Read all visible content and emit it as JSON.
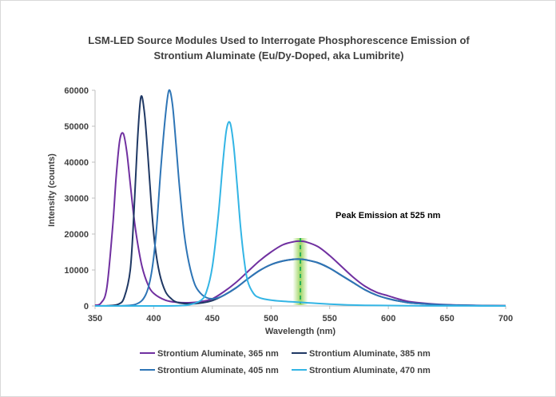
{
  "chart_data": {
    "type": "line",
    "title_line1": "LSM-LED Source Modules Used to Interrogate Phosphorescence Emission of",
    "title_line2": "Strontium Aluminate (Eu/Dy-Doped, aka Lumibrite)",
    "xlabel": "Wavelength (nm)",
    "ylabel": "Intensity (counts)",
    "xlim": [
      350,
      700
    ],
    "ylim": [
      0,
      60000
    ],
    "x_ticks": [
      350,
      400,
      450,
      500,
      550,
      600,
      650,
      700
    ],
    "y_ticks": [
      0,
      10000,
      20000,
      30000,
      40000,
      50000,
      60000
    ],
    "grid": false,
    "legend_position": "bottom",
    "annotation": {
      "text": "Peak Emission at 525 nm",
      "x": 525,
      "highlight_color": "#92d050"
    },
    "series": [
      {
        "name": "Strontium Aluminate, 365 nm",
        "color": "#7030a0",
        "x": [
          350,
          355,
          360,
          365,
          368,
          371,
          374,
          377,
          380,
          383,
          386,
          390,
          395,
          400,
          410,
          420,
          430,
          440,
          450,
          460,
          470,
          480,
          490,
          500,
          510,
          520,
          525,
          530,
          540,
          550,
          560,
          570,
          580,
          590,
          600,
          610,
          620,
          640,
          660,
          680,
          700
        ],
        "y": [
          200,
          800,
          5000,
          22000,
          36000,
          46000,
          48000,
          43000,
          34000,
          25000,
          18000,
          11000,
          6000,
          3500,
          1600,
          1000,
          900,
          1200,
          2000,
          4000,
          6500,
          9500,
          12500,
          15000,
          17000,
          17900,
          18000,
          17800,
          16500,
          14000,
          11000,
          8000,
          5500,
          3800,
          2800,
          1800,
          1100,
          500,
          250,
          100,
          50
        ]
      },
      {
        "name": "Strontium Aluminate, 385 nm",
        "color": "#1f3864",
        "x": [
          350,
          360,
          370,
          375,
          380,
          383,
          386,
          389,
          392,
          395,
          398,
          401,
          405,
          410,
          415,
          420,
          430,
          440,
          450,
          460,
          470,
          480,
          490,
          500,
          510,
          520,
          525,
          530,
          540,
          550,
          560,
          570,
          580,
          590,
          600,
          610,
          620,
          640,
          660,
          680,
          700
        ],
        "y": [
          0,
          50,
          500,
          2500,
          10000,
          25000,
          45000,
          58000,
          54000,
          42000,
          28000,
          17000,
          9000,
          4000,
          2000,
          1000,
          600,
          800,
          1500,
          3000,
          5000,
          7500,
          9800,
          11500,
          12500,
          13000,
          13000,
          12800,
          12000,
          10500,
          8500,
          6500,
          4500,
          3000,
          2000,
          1300,
          800,
          400,
          200,
          80,
          30
        ]
      },
      {
        "name": "Strontium Aluminate, 405 nm",
        "color": "#2e75b6",
        "x": [
          350,
          370,
          385,
          393,
          398,
          402,
          406,
          410,
          413,
          416,
          419,
          422,
          426,
          430,
          435,
          440,
          445,
          450,
          455,
          460,
          470,
          480,
          490,
          500,
          510,
          520,
          525,
          530,
          540,
          550,
          560,
          570,
          580,
          590,
          600,
          610,
          620,
          640,
          660,
          680,
          700
        ],
        "y": [
          0,
          30,
          500,
          3000,
          9000,
          20000,
          38000,
          53000,
          60000,
          56000,
          45000,
          33000,
          20000,
          12000,
          6000,
          3500,
          2300,
          2000,
          2300,
          3000,
          5000,
          7500,
          9800,
          11500,
          12500,
          13000,
          13000,
          12800,
          12000,
          10500,
          8500,
          6500,
          4500,
          3000,
          2000,
          1300,
          800,
          400,
          200,
          80,
          30
        ]
      },
      {
        "name": "Strontium Aluminate, 470 nm",
        "color": "#33b5e5",
        "x": [
          350,
          400,
          420,
          430,
          440,
          445,
          450,
          455,
          459,
          462,
          465,
          468,
          471,
          474,
          477,
          480,
          485,
          490,
          500,
          510,
          520,
          530,
          540,
          550,
          560,
          570,
          580,
          600,
          620,
          640,
          660,
          680,
          700
        ],
        "y": [
          0,
          0,
          50,
          300,
          1500,
          4000,
          11000,
          25000,
          40000,
          49000,
          51000,
          45000,
          34000,
          22000,
          13000,
          7000,
          3500,
          2300,
          1600,
          1300,
          1100,
          900,
          700,
          500,
          350,
          250,
          180,
          100,
          50,
          30,
          20,
          10,
          5
        ]
      }
    ]
  }
}
